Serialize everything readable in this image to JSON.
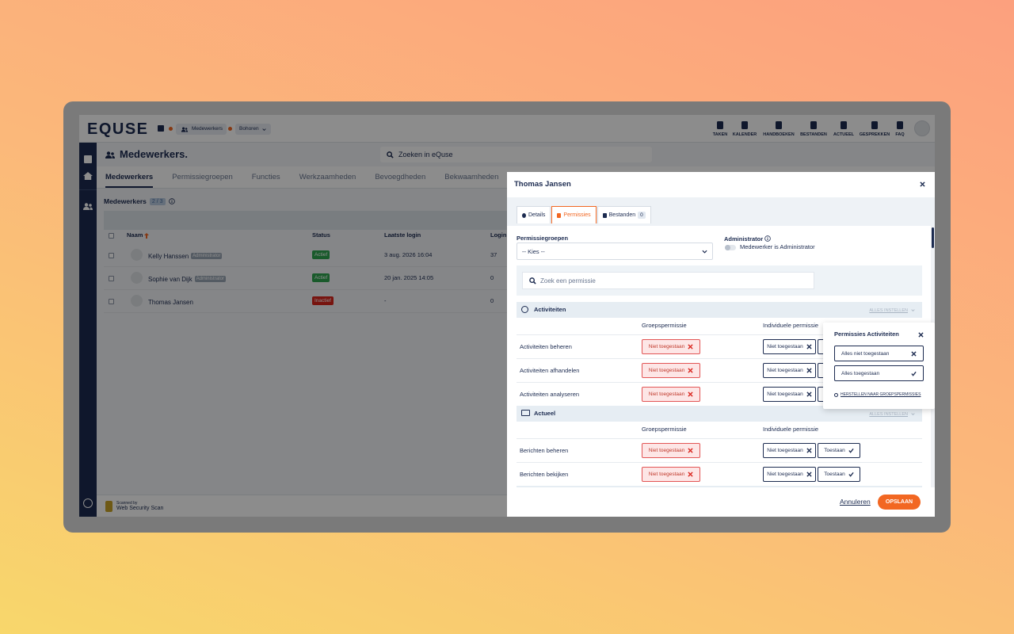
{
  "header": {
    "logo": "EQUSE",
    "breadcrumb": [
      "Medewerkers",
      "Bohoren"
    ],
    "nav": [
      "TAKEN",
      "KALENDER",
      "HANDBOEKEN",
      "BESTANDEN",
      "ACTUEEL",
      "GESPREKKEN",
      "FAQ"
    ]
  },
  "page": {
    "title": "Medewerkers.",
    "search_placeholder": "Zoeken in eQuse",
    "tabs": [
      "Medewerkers",
      "Permissiegroepen",
      "Functies",
      "Werkzaamheden",
      "Bevoegdheden",
      "Bekwaamheden"
    ],
    "list_title": "Medewerkers",
    "count": "2 / 3",
    "columns": [
      "Naam",
      "Status",
      "Laatste login",
      "Login"
    ],
    "rows": [
      {
        "name": "Kelly Hanssen",
        "badge": "Administrator",
        "status": "Actief",
        "active": true,
        "last_login": "3 aug. 2026 16:04",
        "logins": "37"
      },
      {
        "name": "Sophie van Dijk",
        "badge": "Administrator",
        "status": "Actief",
        "active": true,
        "last_login": "20 jan. 2025 14:05",
        "logins": "0"
      },
      {
        "name": "Thomas Jansen",
        "status": "Inactief",
        "active": false,
        "last_login": "-",
        "logins": "0"
      }
    ],
    "footer": {
      "scanned_by": "Scanned by",
      "scanner": "Web Security Scan"
    }
  },
  "modal": {
    "title": "Thomas Jansen",
    "tabs": [
      {
        "label": "Details"
      },
      {
        "label": "Permissies"
      },
      {
        "label": "Bestanden",
        "count": "0"
      }
    ],
    "active_tab": 1,
    "group_label": "Permissiegroepen",
    "group_select": "-- Kies --",
    "admin_label": "Administrator",
    "admin_toggle": "Medewerker is Administrator",
    "search_placeholder": "Zoek een permissie",
    "sections": [
      {
        "name": "Activiteiten",
        "set_all": "ALLES INSTELLEN",
        "group_col": "Groepspermissie",
        "individual_col": "Individuele permissie",
        "permissions": [
          {
            "name": "Activiteiten beheren",
            "group": "Niet toegestaan",
            "deny": "Niet toegestaan",
            "allow": "Toestaan"
          },
          {
            "name": "Activiteiten afhandelen",
            "group": "Niet toegestaan",
            "deny": "Niet toegestaan",
            "allow": "Toestaan"
          },
          {
            "name": "Activiteiten analyseren",
            "group": "Niet toegestaan",
            "deny": "Niet toegestaan",
            "allow": "Toestaan"
          }
        ]
      },
      {
        "name": "Actueel",
        "set_all": "ALLES INSTELLEN",
        "group_col": "Groepspermissie",
        "individual_col": "Individuele permissie",
        "permissions": [
          {
            "name": "Berichten beheren",
            "group": "Niet toegestaan",
            "deny": "Niet toegestaan",
            "allow": "Toestaan"
          },
          {
            "name": "Berichten bekijken",
            "group": "Niet toegestaan",
            "deny": "Niet toegestaan",
            "allow": "Toestaan"
          }
        ]
      }
    ],
    "popover": {
      "title": "Permissies Activiteiten",
      "options": [
        "Alles niet toegestaan",
        "Alles toegestaan"
      ],
      "reset": "HERSTELLEN NAAR GROEPSPERMISSIES"
    },
    "cancel": "Annuleren",
    "save": "OPSLAAN"
  }
}
